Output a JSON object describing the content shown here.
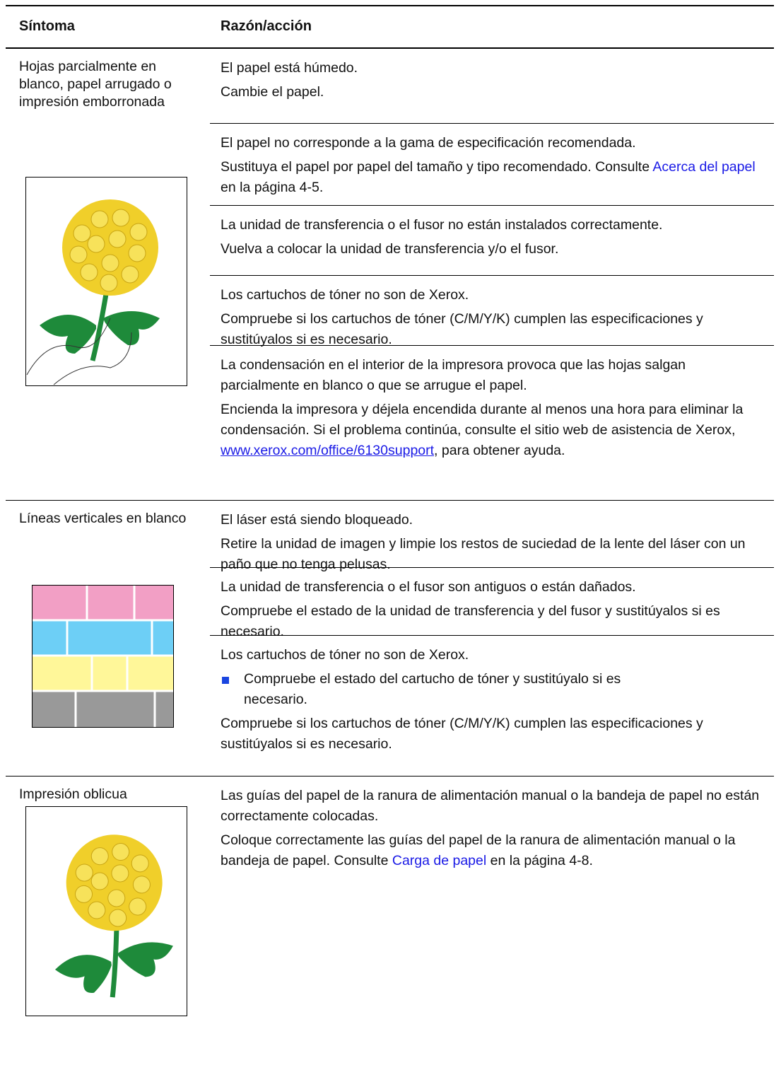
{
  "header": {
    "symptom": "Síntoma",
    "reason": "Razón/acción"
  },
  "rows": [
    {
      "symptom": "Hojas parcialmente en blanco, papel arrugado o impresión emborronada",
      "causes": [
        [
          [
            "El papel está húmedo."
          ],
          [
            "Cambie el papel."
          ]
        ],
        [
          [
            "El papel no corresponde a la gama de especificación recomendada."
          ],
          [
            "Sustituya el papel por papel del tamaño y tipo recomendado. Consulte ",
            {
              "link": "Acerca del papel"
            },
            " en la página 4-5."
          ]
        ],
        [
          [
            "La unidad de transferencia o el fusor no están instalados correctamente."
          ],
          [
            "Vuelva a colocar la unidad de transferencia y/o el fusor."
          ]
        ],
        [
          [
            "Los cartuchos de tóner no son de Xerox."
          ],
          [
            "Compruebe si los cartuchos de tóner (C/M/Y/K) cumplen las especificaciones y sustitúyalos si es necesario."
          ]
        ],
        [
          [
            "La condensación en el interior de la impresora provoca que las hojas salgan parcialmente en blanco o que se arrugue el papel."
          ],
          [
            "Encienda la impresora y déjela encendida durante al menos una hora para eliminar la condensación. Si el problema continúa, consulte el sitio web de asistencia de Xerox, ",
            {
              "url": "www.xerox.com/office/6130support"
            },
            ", para obtener ayuda."
          ]
        ]
      ]
    },
    {
      "symptom": "Líneas verticales en blanco",
      "causes": [
        [
          [
            "El láser está siendo bloqueado."
          ],
          [
            "Retire la unidad de imagen y limpie los restos de suciedad de la lente del láser con un paño que no tenga pelusas."
          ]
        ],
        [
          [
            "La unidad de transferencia o el fusor son antiguos o están dañados."
          ],
          [
            "Compruebe el estado de la unidad de transferencia y del fusor y sustitúyalos si es necesario."
          ]
        ],
        [
          [
            "Los cartuchos de tóner no son de Xerox."
          ],
          {
            "bullet": [
              "Compruebe el estado del cartucho de tóner y sustitúyalo si es necesario."
            ]
          },
          [
            "Compruebe si los cartuchos de tóner (C/M/Y/K) cumplen las especificaciones y sustitúyalos si es necesario."
          ]
        ]
      ]
    },
    {
      "symptom": "Impresión oblicua",
      "causes": [
        [
          [
            "Las guías del papel de la ranura de alimentación manual o la bandeja de papel no están correctamente colocadas."
          ],
          [
            "Coloque correctamente las guías del papel de la ranura de alimentación manual o la bandeja de papel. Consulte ",
            {
              "link": "Carga de papel"
            },
            " en la página 4-8."
          ]
        ]
      ]
    }
  ]
}
